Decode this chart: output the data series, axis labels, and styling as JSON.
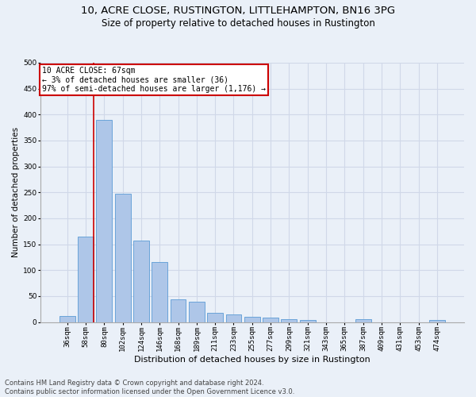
{
  "title1": "10, ACRE CLOSE, RUSTINGTON, LITTLEHAMPTON, BN16 3PG",
  "title2": "Size of property relative to detached houses in Rustington",
  "xlabel": "Distribution of detached houses by size in Rustington",
  "ylabel": "Number of detached properties",
  "categories": [
    "36sqm",
    "58sqm",
    "80sqm",
    "102sqm",
    "124sqm",
    "146sqm",
    "168sqm",
    "189sqm",
    "211sqm",
    "233sqm",
    "255sqm",
    "277sqm",
    "299sqm",
    "321sqm",
    "343sqm",
    "365sqm",
    "387sqm",
    "409sqm",
    "431sqm",
    "453sqm",
    "474sqm"
  ],
  "values": [
    12,
    165,
    390,
    248,
    157,
    115,
    43,
    39,
    18,
    15,
    10,
    8,
    5,
    4,
    0,
    0,
    5,
    0,
    0,
    0,
    4
  ],
  "bar_color": "#aec6e8",
  "bar_edge_color": "#5b9bd5",
  "grid_color": "#d0d8e8",
  "background_color": "#eaf0f8",
  "annotation_text": "10 ACRE CLOSE: 67sqm\n← 3% of detached houses are smaller (36)\n97% of semi-detached houses are larger (1,176) →",
  "annotation_box_color": "#ffffff",
  "annotation_border_color": "#cc0000",
  "vline_color": "#cc0000",
  "vline_x_index": 1,
  "vline_x_offset": 0.43,
  "ylim": [
    0,
    500
  ],
  "yticks": [
    0,
    50,
    100,
    150,
    200,
    250,
    300,
    350,
    400,
    450,
    500
  ],
  "footnote": "Contains HM Land Registry data © Crown copyright and database right 2024.\nContains public sector information licensed under the Open Government Licence v3.0.",
  "title1_fontsize": 9.5,
  "title2_fontsize": 8.5,
  "xlabel_fontsize": 8,
  "ylabel_fontsize": 7.5,
  "tick_fontsize": 6.5,
  "annot_fontsize": 7,
  "footnote_fontsize": 6
}
